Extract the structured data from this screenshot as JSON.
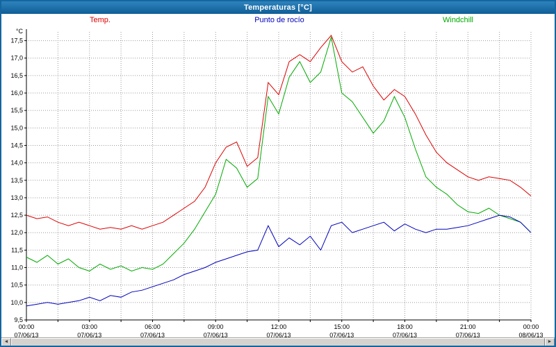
{
  "window": {
    "title": "Temperaturas [°C]"
  },
  "legend": [
    {
      "label": "Temp.",
      "color": "#dd0000"
    },
    {
      "label": "Punto de rocío",
      "color": "#0000bb"
    },
    {
      "label": "Windchill",
      "color": "#00aa00"
    }
  ],
  "colors": {
    "frame_blue": "#1466a0",
    "grid": "#999999",
    "axis": "#000000"
  },
  "scrollbar": {
    "left_arrow": "◄",
    "right_arrow": "►"
  },
  "chart_data": {
    "type": "line",
    "title": "Temperaturas [°C]",
    "ylabel": "°C",
    "xlabel": "",
    "grid": true,
    "legend_position": "top",
    "xlim": [
      0,
      24
    ],
    "ylim": [
      9.5,
      17.75
    ],
    "x_minor_step_hours": 1.5,
    "x_hours": [
      0,
      0.5,
      1,
      1.5,
      2,
      2.5,
      3,
      3.5,
      4,
      4.5,
      5,
      5.5,
      6,
      6.5,
      7,
      7.5,
      8,
      8.5,
      9,
      9.5,
      10,
      10.5,
      11,
      11.5,
      12,
      12.5,
      13,
      13.5,
      14,
      14.5,
      15,
      15.5,
      16,
      16.5,
      17,
      17.5,
      18,
      18.5,
      19,
      19.5,
      20,
      20.5,
      21,
      21.5,
      22,
      22.5,
      23,
      23.5,
      24
    ],
    "series": [
      {
        "name": "Temp.",
        "color": "#dd0000",
        "values": [
          12.5,
          12.4,
          12.45,
          12.3,
          12.2,
          12.3,
          12.2,
          12.1,
          12.15,
          12.1,
          12.2,
          12.1,
          12.2,
          12.3,
          12.5,
          12.7,
          12.9,
          13.3,
          14.0,
          14.45,
          14.6,
          13.9,
          14.15,
          16.3,
          15.95,
          16.9,
          17.1,
          16.9,
          17.3,
          17.65,
          16.9,
          16.6,
          16.75,
          16.2,
          15.8,
          16.1,
          15.9,
          15.4,
          14.8,
          14.3,
          14.0,
          13.8,
          13.6,
          13.5,
          13.6,
          13.55,
          13.5,
          13.3,
          13.05
        ]
      },
      {
        "name": "Punto de rocío",
        "color": "#0000bb",
        "values": [
          9.9,
          9.95,
          10.0,
          9.95,
          10.0,
          10.05,
          10.15,
          10.05,
          10.2,
          10.15,
          10.3,
          10.35,
          10.45,
          10.55,
          10.65,
          10.8,
          10.9,
          11.0,
          11.15,
          11.25,
          11.35,
          11.45,
          11.5,
          12.2,
          11.6,
          11.85,
          11.65,
          11.9,
          11.5,
          12.2,
          12.3,
          12.0,
          12.1,
          12.2,
          12.3,
          12.05,
          12.25,
          12.1,
          12.0,
          12.1,
          12.1,
          12.15,
          12.2,
          12.3,
          12.4,
          12.5,
          12.45,
          12.3,
          12.0
        ]
      },
      {
        "name": "Windchill",
        "color": "#00aa00",
        "values": [
          11.3,
          11.15,
          11.35,
          11.1,
          11.25,
          11.0,
          10.9,
          11.1,
          10.95,
          11.05,
          10.9,
          11.0,
          10.95,
          11.1,
          11.4,
          11.7,
          12.1,
          12.6,
          13.1,
          14.1,
          13.85,
          13.3,
          13.55,
          15.9,
          15.4,
          16.45,
          16.9,
          16.3,
          16.6,
          17.6,
          16.0,
          15.75,
          15.3,
          14.85,
          15.2,
          15.9,
          15.3,
          14.4,
          13.6,
          13.3,
          13.1,
          12.8,
          12.6,
          12.55,
          12.7,
          12.5,
          12.4,
          12.3,
          12.0
        ]
      }
    ],
    "y_ticks": [
      "9,5",
      "10,0",
      "10,5",
      "11,0",
      "11,5",
      "12,0",
      "12,5",
      "13,0",
      "13,5",
      "14,0",
      "14,5",
      "15,0",
      "15,5",
      "16,0",
      "16,5",
      "17,0",
      "17,5"
    ],
    "x_ticks": [
      {
        "hour": 0,
        "time": "00:00",
        "date": "07/06/13"
      },
      {
        "hour": 3,
        "time": "03:00",
        "date": "07/06/13"
      },
      {
        "hour": 6,
        "time": "06:00",
        "date": "07/06/13"
      },
      {
        "hour": 9,
        "time": "09:00",
        "date": "07/06/13"
      },
      {
        "hour": 12,
        "time": "12:00",
        "date": "07/06/13"
      },
      {
        "hour": 15,
        "time": "15:00",
        "date": "07/06/13"
      },
      {
        "hour": 18,
        "time": "18:00",
        "date": "07/06/13"
      },
      {
        "hour": 21,
        "time": "21:00",
        "date": "07/06/13"
      },
      {
        "hour": 24,
        "time": "00:00",
        "date": "08/06/13"
      }
    ]
  }
}
